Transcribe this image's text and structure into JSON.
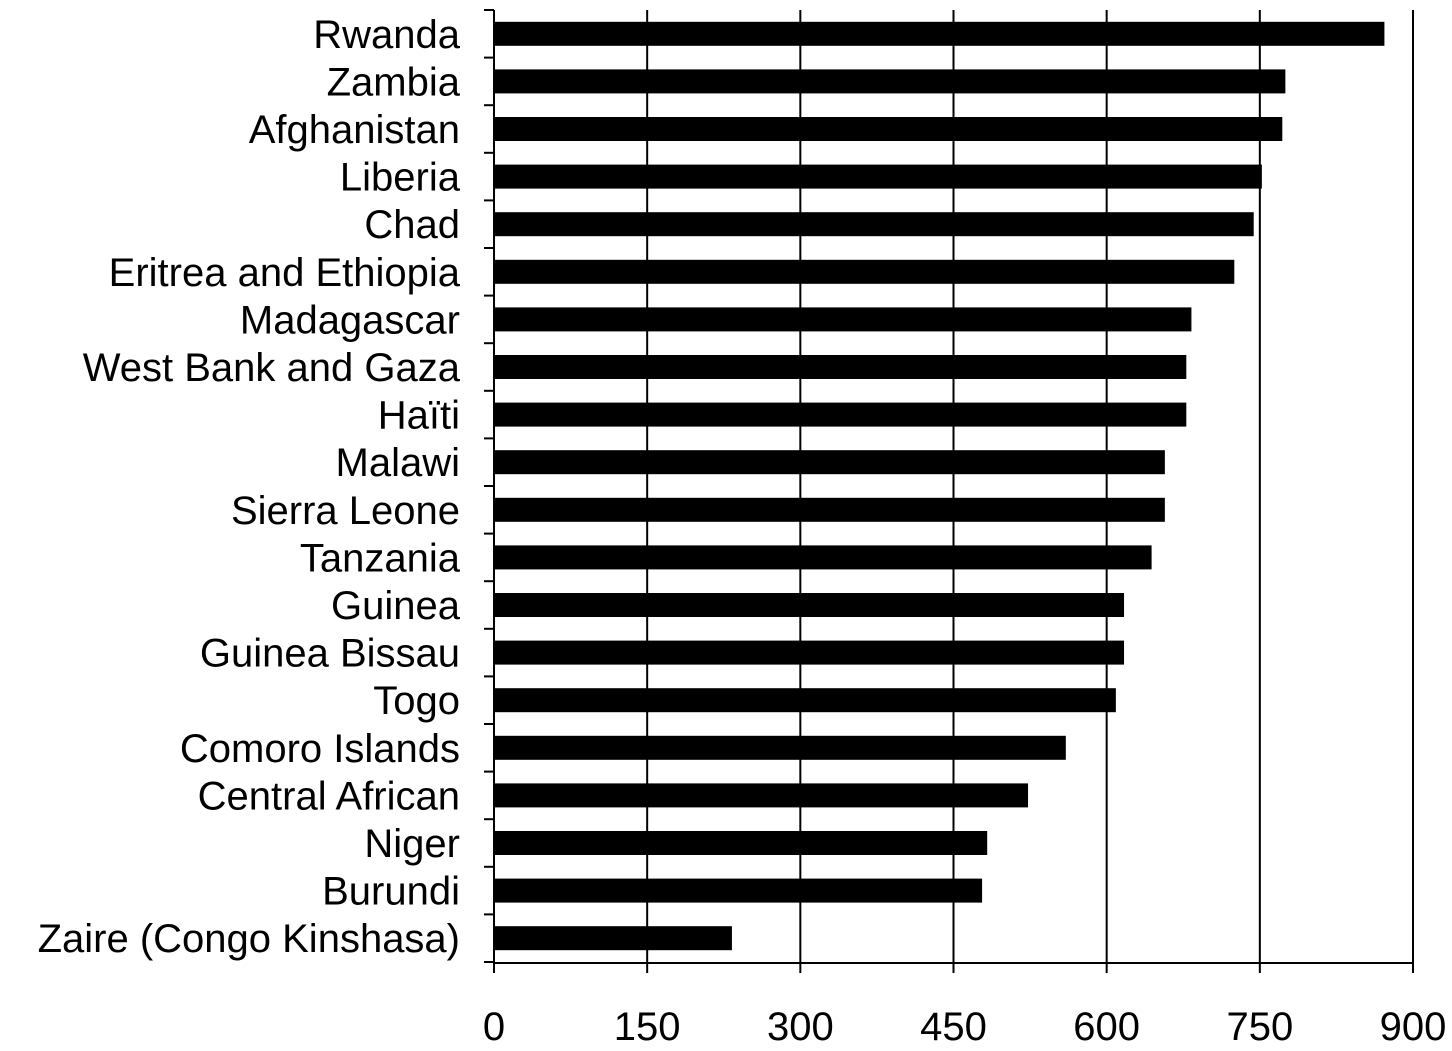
{
  "chart_data": {
    "type": "bar",
    "orientation": "horizontal",
    "categories": [
      "Rwanda",
      "Zambia",
      "Afghanistan",
      "Liberia",
      "Chad",
      "Eritrea and Ethiopia",
      "Madagascar",
      "West Bank and Gaza",
      "Haïti",
      "Malawi",
      "Sierra Leone",
      "Tanzania",
      "Guinea",
      "Guinea Bissau",
      "Togo",
      "Comoro Islands",
      "Central African",
      "Niger",
      "Burundi",
      "Zaire (Congo Kinshasa)"
    ],
    "values": [
      872,
      775,
      772,
      752,
      744,
      725,
      683,
      678,
      678,
      657,
      657,
      644,
      617,
      617,
      609,
      560,
      523,
      483,
      478,
      233
    ],
    "xlim": [
      0,
      900
    ],
    "xticks": [
      "0",
      "150",
      "300",
      "450",
      "600",
      "750",
      "900"
    ],
    "grid": "vertical",
    "bar_color": "#000000",
    "title": "",
    "xlabel": "",
    "ylabel": ""
  }
}
